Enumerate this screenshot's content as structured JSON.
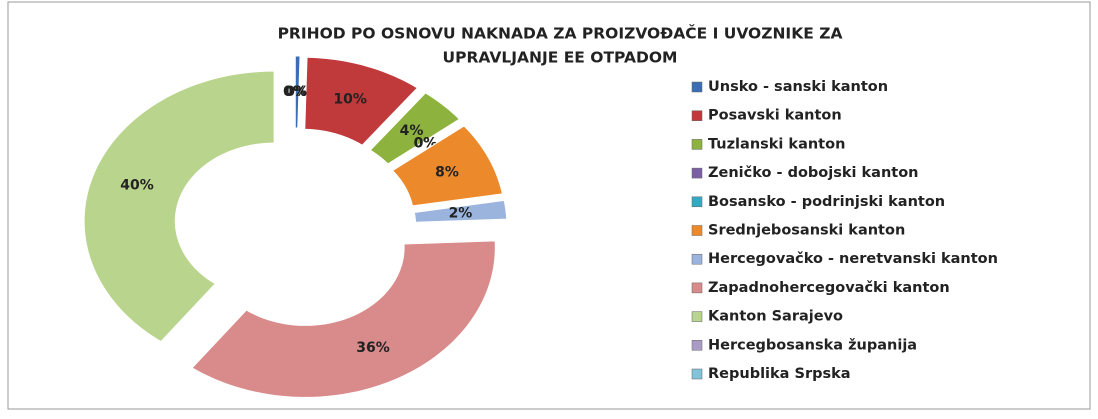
{
  "chart_data": {
    "type": "donut",
    "title": [
      "PRIHOD PO OSNOVU NAKNADA ZA PROIZVOĐAČE I UVOZNIKE ZA",
      "UPRAVLJANJE EE OTPADOM"
    ],
    "categories": [
      "Unsko - sanski kanton",
      "Posavski kanton",
      "Tuzlanski kanton",
      "Zeničko - dobojski kanton",
      "Bosansko - podrinjski kanton",
      "Srednjebosanski kanton",
      "Hercegovačko - neretvanski kanton",
      "Zapadnohercegovački kanton",
      "Kanton Sarajevo",
      "Hercegbosanska županija",
      "Republika Srpska"
    ],
    "values": [
      0.4,
      10,
      4,
      0,
      0,
      8,
      2,
      36,
      40,
      0,
      0
    ],
    "value_labels": [
      "0%",
      "10%",
      "4%",
      "0%",
      "0%",
      "8%",
      "2%",
      "36%",
      "40%",
      "0%",
      "0%"
    ],
    "colors": [
      "#3a6db5",
      "#c0393b",
      "#8db33e",
      "#7a5ea6",
      "#33a9c4",
      "#ec8a2b",
      "#9bb4dd",
      "#d98a8a",
      "#b9d48c",
      "#a99bc6",
      "#7fc4d8"
    ],
    "legend": "right"
  }
}
